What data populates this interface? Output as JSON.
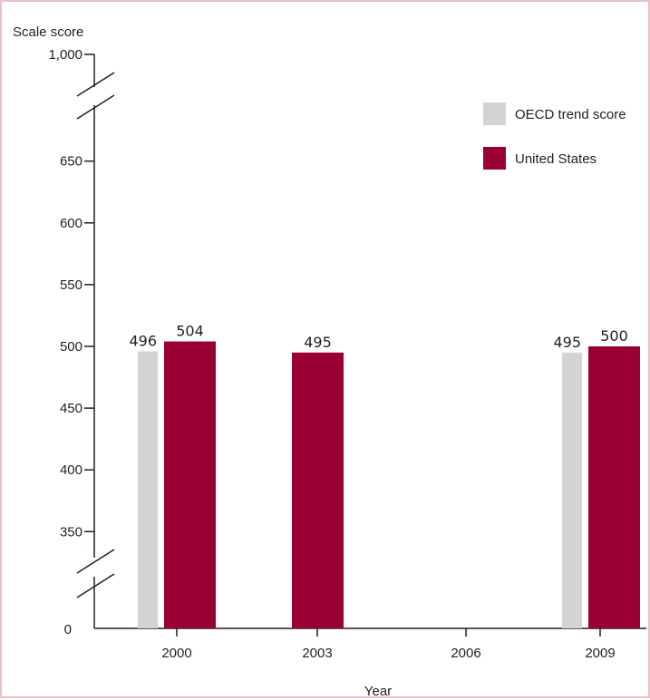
{
  "chart_data": {
    "type": "bar",
    "ylabel": "Scale score",
    "xlabel": "Year",
    "categories": [
      "2000",
      "2003",
      "2006",
      "2009"
    ],
    "series": [
      {
        "name": "OECD trend score",
        "color": "#d1d3d4",
        "values": [
          496,
          null,
          null,
          495
        ],
        "labels": [
          "496",
          "",
          "",
          "495"
        ]
      },
      {
        "name": "United States",
        "color": "#9a0033",
        "values": [
          504,
          495,
          null,
          500
        ],
        "labels": [
          "504",
          "495",
          "",
          "500"
        ]
      }
    ],
    "y_ticks": [
      350,
      400,
      450,
      500,
      550,
      600,
      650
    ],
    "y_tick_labels": [
      "350",
      "400",
      "450",
      "500",
      "550",
      "600",
      "650"
    ],
    "y_axis_zero_label": "0",
    "y_axis_top_label": "1,000",
    "ylim": [
      325,
      675
    ],
    "axis_breaks": true,
    "legend_position": "top-right",
    "grid": false
  }
}
